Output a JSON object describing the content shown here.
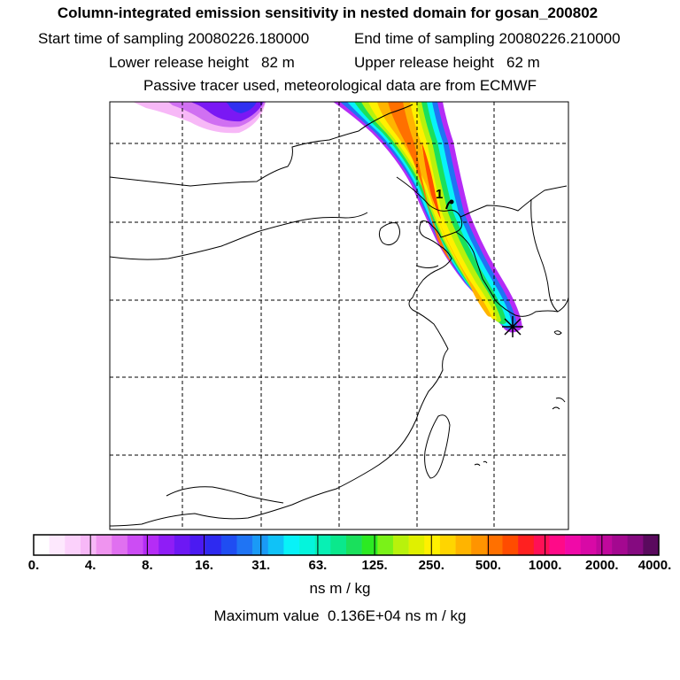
{
  "header": {
    "title": "Column-integrated emission sensitivity in nested domain for gosan_200802",
    "start_label": "Start time of sampling",
    "start_value": "20080226.180000",
    "end_label": "End time of sampling",
    "end_value": "20080226.210000",
    "lower_label": "Lower release height",
    "lower_value": "82 m",
    "upper_label": "Upper release height",
    "upper_value": "62 m",
    "tracer_line": "Passive tracer used, meteorological data are from ECMWF"
  },
  "map": {
    "release_marker_label": "1",
    "site_marker": "asterisk",
    "gridlines": "dashed"
  },
  "colorbar": {
    "labels": [
      "0.",
      "4.",
      "8.",
      "16.",
      "31.",
      "63.",
      "125.",
      "250.",
      "500.",
      "1000.",
      "2000.",
      "4000."
    ],
    "colors": [
      "#ffffff",
      "#fde8fd",
      "#fbd1fb",
      "#f7b8f7",
      "#ef94ef",
      "#e070f0",
      "#cc4cf4",
      "#b52cf6",
      "#8f1df6",
      "#6d18f4",
      "#4b1af2",
      "#2e2af0",
      "#1f4df2",
      "#1f74f4",
      "#1a9af6",
      "#10c2f7",
      "#08f2f8",
      "#05f4dc",
      "#08f0b4",
      "#0ae88c",
      "#1ae05c",
      "#2cea22",
      "#7af218",
      "#b8f20c",
      "#e0f000",
      "#fff000",
      "#ffd500",
      "#ffb400",
      "#ff9400",
      "#ff7000",
      "#ff4c00",
      "#ff2020",
      "#ff1056",
      "#ff0a88",
      "#f00aa8",
      "#d809a6",
      "#c0089c",
      "#a40890",
      "#850a80",
      "#5a0a5e"
    ],
    "units": "ns m / kg",
    "maximum_text": "Maximum value  0.136E+04 ns m / kg"
  }
}
